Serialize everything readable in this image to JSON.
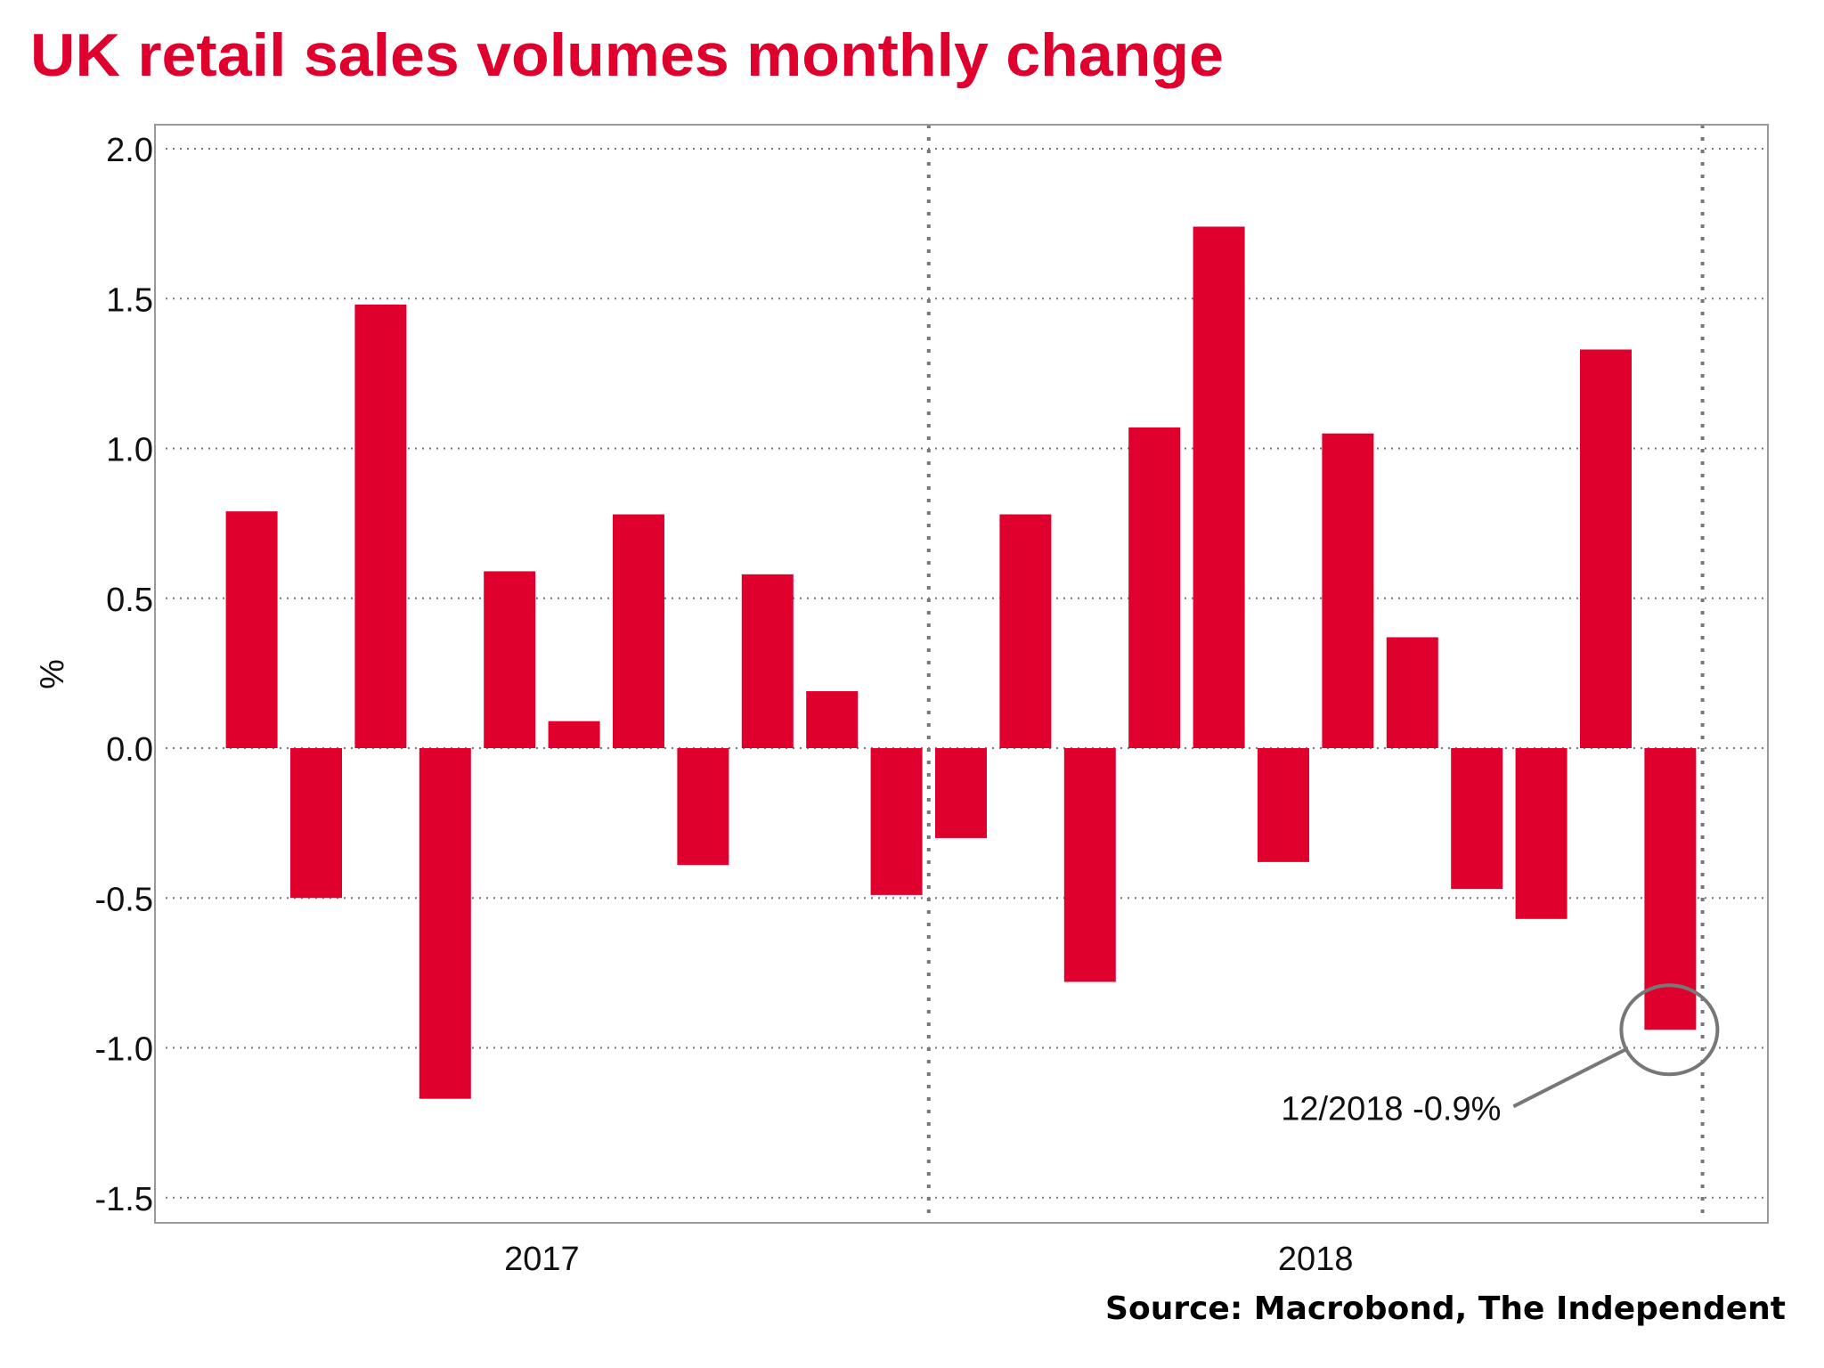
{
  "chart_data": {
    "type": "bar",
    "title": "UK retail sales volumes monthly change",
    "xlabel": "",
    "ylabel": "%",
    "ylim": [
      -1.58,
      2.08
    ],
    "yticks": [
      2.0,
      1.5,
      1.0,
      0.5,
      0.0,
      -0.5,
      -1.0,
      -1.5
    ],
    "ytick_labels": [
      "2.0",
      "1.5",
      "1.0",
      "0.5",
      "0.0",
      "-0.5",
      "-1.0",
      "-1.5"
    ],
    "grid": true,
    "x_period": {
      "start": "2017-01",
      "end": "2018-12"
    },
    "year_labels": [
      {
        "label": "2017",
        "start": "2017-01",
        "end": "2017-12"
      },
      {
        "label": "2018",
        "start": "2018-01",
        "end": "2018-12"
      }
    ],
    "categories": [
      "2017-02",
      "2017-03",
      "2017-04",
      "2017-05",
      "2017-06",
      "2017-07",
      "2017-08",
      "2017-09",
      "2017-10",
      "2017-11",
      "2017-12",
      "2018-01",
      "2018-02",
      "2018-03",
      "2018-04",
      "2018-05",
      "2018-06",
      "2018-07",
      "2018-08",
      "2018-09",
      "2018-10",
      "2018-11",
      "2018-12"
    ],
    "series": [
      {
        "name": "Retail sales volumes, monthly change",
        "color": "#e0002e",
        "values": [
          0.79,
          -0.5,
          1.48,
          -1.17,
          0.59,
          0.09,
          0.78,
          -0.39,
          0.58,
          0.19,
          -0.49,
          -0.3,
          0.78,
          -0.78,
          1.07,
          1.74,
          -0.38,
          1.05,
          0.37,
          -0.47,
          -0.57,
          1.33,
          -0.94
        ]
      }
    ],
    "annotations": [
      {
        "text": "12/2018  -0.9%",
        "target": "2018-12",
        "value": -0.94,
        "style": "circle-with-leader"
      }
    ],
    "source": "Source: Macrobond, The Independent"
  },
  "colors": {
    "title": "#e0002e",
    "bar": "#e0002e",
    "grid": "#777777",
    "axis": "#999999",
    "annotation": "#777777"
  }
}
